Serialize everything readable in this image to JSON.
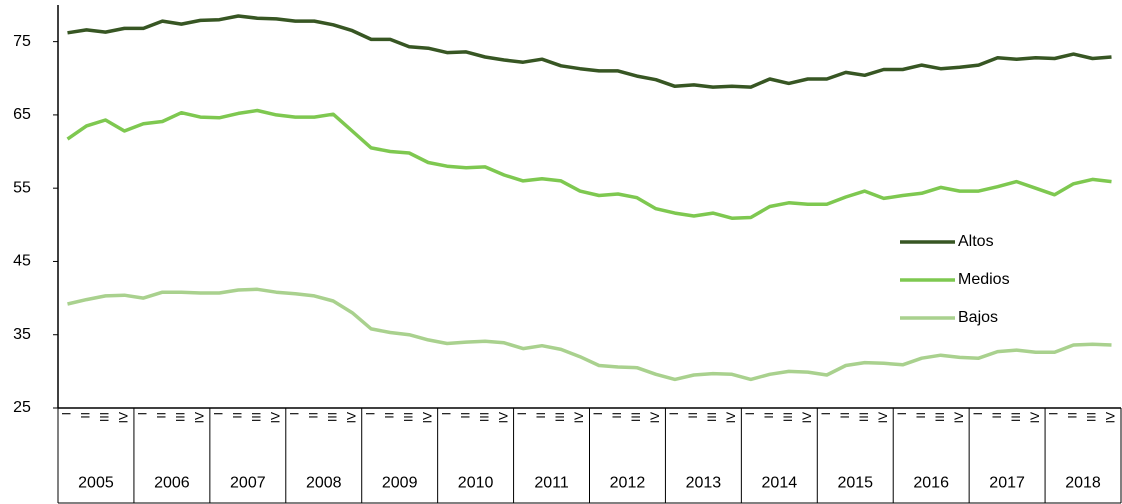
{
  "chart_data": {
    "type": "line",
    "categories": [
      "I",
      "II",
      "III",
      "IV",
      "I",
      "II",
      "III",
      "IV",
      "I",
      "II",
      "III",
      "IV",
      "I",
      "II",
      "III",
      "IV",
      "I",
      "II",
      "III",
      "IV",
      "I",
      "II",
      "III",
      "IV",
      "I",
      "II",
      "III",
      "IV",
      "I",
      "II",
      "III",
      "IV",
      "I",
      "II",
      "III",
      "IV",
      "I",
      "II",
      "III",
      "IV",
      "I",
      "II",
      "III",
      "IV",
      "I",
      "II",
      "III",
      "IV",
      "I",
      "II",
      "III",
      "IV",
      "I",
      "II",
      "III",
      "IV"
    ],
    "years": [
      "2005",
      "2006",
      "2007",
      "2008",
      "2009",
      "2010",
      "2011",
      "2012",
      "2013",
      "2014",
      "2015",
      "2016",
      "2017",
      "2018"
    ],
    "ylim": [
      25,
      80
    ],
    "yticks": [
      25,
      35,
      45,
      55,
      65,
      75
    ],
    "grid": false,
    "series": [
      {
        "name": "Altos",
        "color": "#375623",
        "values": [
          76.2,
          76.6,
          76.3,
          76.8,
          76.8,
          77.8,
          77.4,
          77.9,
          78.0,
          78.5,
          78.2,
          78.1,
          77.8,
          77.8,
          77.3,
          76.5,
          75.3,
          75.3,
          74.3,
          74.1,
          73.5,
          73.6,
          72.9,
          72.5,
          72.2,
          72.6,
          71.7,
          71.3,
          71.0,
          71.0,
          70.3,
          69.8,
          68.9,
          69.1,
          68.8,
          68.9,
          68.8,
          69.9,
          69.3,
          69.9,
          69.9,
          70.8,
          70.4,
          71.2,
          71.2,
          71.8,
          71.3,
          71.5,
          71.8,
          72.8,
          72.6,
          72.8,
          72.7,
          73.3,
          72.7,
          72.9
        ]
      },
      {
        "name": "Medios",
        "color": "#7ec850",
        "values": [
          61.7,
          63.5,
          64.3,
          62.8,
          63.8,
          64.1,
          65.3,
          64.7,
          64.6,
          65.2,
          65.6,
          65.0,
          64.7,
          64.7,
          65.1,
          62.8,
          60.5,
          60.0,
          59.8,
          58.5,
          58.0,
          57.8,
          57.9,
          56.8,
          56.0,
          56.3,
          56.0,
          54.6,
          54.0,
          54.2,
          53.7,
          52.2,
          51.6,
          51.2,
          51.6,
          50.9,
          51.0,
          52.5,
          53.0,
          52.8,
          52.8,
          53.8,
          54.6,
          53.6,
          54.0,
          54.3,
          55.1,
          54.6,
          54.6,
          55.2,
          55.9,
          55.0,
          54.1,
          55.6,
          56.2,
          55.9
        ]
      },
      {
        "name": "Bajos",
        "color": "#a9d18e",
        "values": [
          39.2,
          39.8,
          40.3,
          40.4,
          40.0,
          40.8,
          40.8,
          40.7,
          40.7,
          41.1,
          41.2,
          40.8,
          40.6,
          40.3,
          39.6,
          38.0,
          35.8,
          35.3,
          35.0,
          34.3,
          33.8,
          34.0,
          34.1,
          33.9,
          33.1,
          33.5,
          33.0,
          32.0,
          30.8,
          30.6,
          30.5,
          29.6,
          28.9,
          29.5,
          29.7,
          29.6,
          28.9,
          29.6,
          30.0,
          29.9,
          29.5,
          30.8,
          31.2,
          31.1,
          30.9,
          31.8,
          32.2,
          31.9,
          31.8,
          32.7,
          32.9,
          32.6,
          32.6,
          33.6,
          33.7,
          33.6
        ]
      }
    ]
  }
}
